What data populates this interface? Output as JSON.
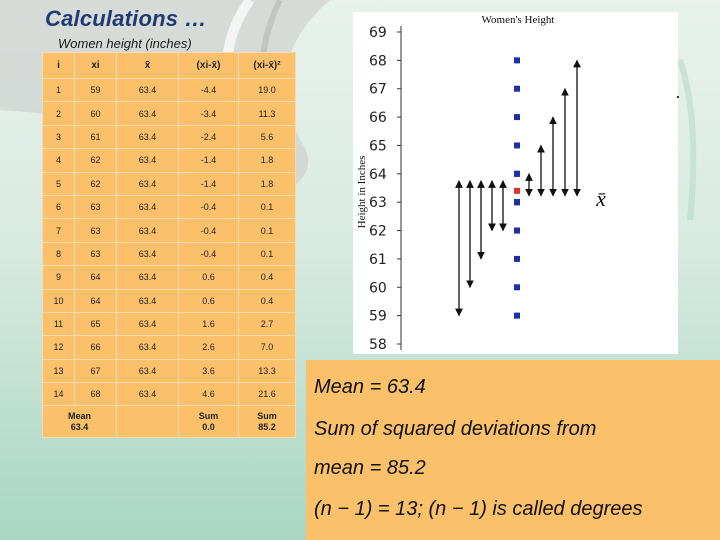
{
  "slide": {
    "title": "Calculations …",
    "subtitle": "Women height (inches)"
  },
  "table": {
    "headers": [
      "i",
      "xi",
      "x̄",
      "(xi-x̄)",
      "(xi-x̄)²"
    ],
    "rows": [
      [
        "1",
        "59",
        "63.4",
        "-4.4",
        "19.0"
      ],
      [
        "2",
        "60",
        "63.4",
        "-3.4",
        "11.3"
      ],
      [
        "3",
        "61",
        "63.4",
        "-2.4",
        "5.6"
      ],
      [
        "4",
        "62",
        "63.4",
        "-1.4",
        "1.8"
      ],
      [
        "5",
        "62",
        "63.4",
        "-1.4",
        "1.8"
      ],
      [
        "6",
        "63",
        "63.4",
        "-0.4",
        "0.1"
      ],
      [
        "7",
        "63",
        "63.4",
        "-0.4",
        "0.1"
      ],
      [
        "8",
        "63",
        "63.4",
        "-0.4",
        "0.1"
      ],
      [
        "9",
        "64",
        "63.4",
        "0.6",
        "0.4"
      ],
      [
        "10",
        "64",
        "63.4",
        "0.6",
        "0.4"
      ],
      [
        "11",
        "65",
        "63.4",
        "1.6",
        "2.7"
      ],
      [
        "12",
        "66",
        "63.4",
        "2.6",
        "7.0"
      ],
      [
        "13",
        "67",
        "63.4",
        "3.6",
        "13.3"
      ],
      [
        "14",
        "68",
        "63.4",
        "4.6",
        "21.6"
      ]
    ],
    "footer": {
      "mean_label": "Mean",
      "mean_value": "63.4",
      "sum1_label": "Sum",
      "sum1_value": "0.0",
      "sum2_label": "Sum",
      "sum2_value": "85.2"
    }
  },
  "chart_data": {
    "type": "scatter",
    "title": "Women's Height",
    "ylabel": "Height in Inches",
    "ylim": [
      58,
      69
    ],
    "yticks": [
      58,
      59,
      60,
      61,
      62,
      63,
      64,
      65,
      66,
      67,
      68,
      69
    ],
    "mean": 63.4,
    "mean_label": "x̄",
    "points": [
      59,
      60,
      61,
      62,
      62,
      63,
      63,
      63,
      64,
      64,
      65,
      66,
      67,
      68
    ],
    "deviation_arrows": [
      59,
      60,
      61,
      62,
      62,
      64,
      65,
      66,
      67,
      68
    ],
    "colors": {
      "point": "#1f2fa8",
      "mean_point": "#e03030",
      "arrow": "#111111"
    }
  },
  "summary": {
    "line1": "Mean  =  63.4",
    "line2": "Sum of squared deviations from",
    "line3": "mean = 85.2",
    "line4": "(n − 1) = 13; (n − 1) is called degrees"
  }
}
